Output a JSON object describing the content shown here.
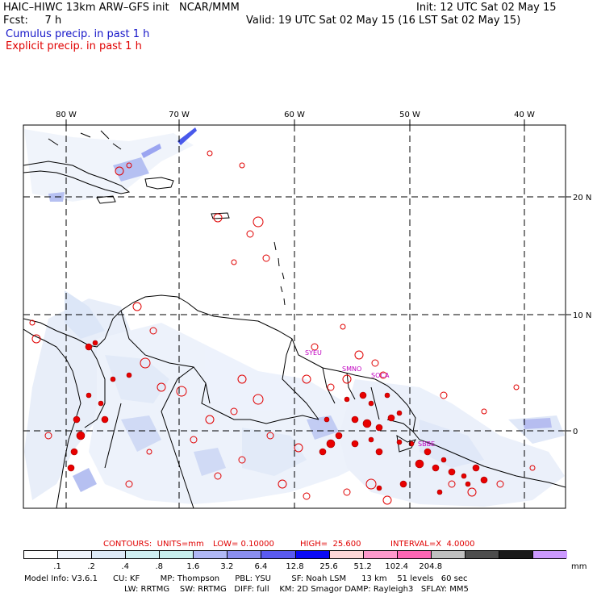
{
  "header": {
    "left_line1": "HAIC–HIWC 13km ARW–GFS init   NCAR/MMM",
    "init": "Init: 12 UTC Sat 02 May 15",
    "fcst": "Fcst:     7 h",
    "valid": "Valid: 19 UTC Sat 02 May 15 (16 LST Sat 02 May 15)",
    "cumulus": "Cumulus precip. in past 1 h",
    "explicit": "Explicit precip. in past 1 h"
  },
  "map": {
    "lon_labels": [
      "80 W",
      "70 W",
      "60 W",
      "50 W",
      "40 W"
    ],
    "lat_labels": [
      "20 N",
      "10 N",
      "0"
    ],
    "stations": [
      "SYEU",
      "SMNO",
      "SOCA",
      "SBBE"
    ]
  },
  "contours": {
    "prefix": "CONTOURS:  UNITS=mm",
    "low": "LOW= 0.10000",
    "high": "HIGH=  25.600",
    "interval": "INTERVAL=X  4.0000"
  },
  "colorbar": {
    "labels": [
      ".1",
      ".2",
      ".4",
      ".8",
      "1.6",
      "3.2",
      "6.4",
      "12.8",
      "25.6",
      "51.2",
      "102.4",
      "204.8"
    ],
    "unit": "mm",
    "colors": [
      "#ffffff",
      "#eef3fb",
      "#ddeaf7",
      "#d0f0f3",
      "#c8f0ef",
      "#b0b8f5",
      "#8a8ef0",
      "#5a5af0",
      "#0a0af5",
      "#ffd6d6",
      "#ff99cc",
      "#ff66b4",
      "#c0c0c0",
      "#4d4d4d",
      "#1a1a1a",
      "#cc99ff"
    ]
  },
  "footer": {
    "line1": "Model Info: V3.6.1      CU: KF        MP: Thompson      PBL: YSU        SF: Noah LSM      13 km    51 levels   60 sec",
    "line2": "LW: RRTMG    SW: RRTMG   DIFF: full    KM: 2D Smagor DAMP: Rayleigh3   SFLAY: MM5"
  }
}
